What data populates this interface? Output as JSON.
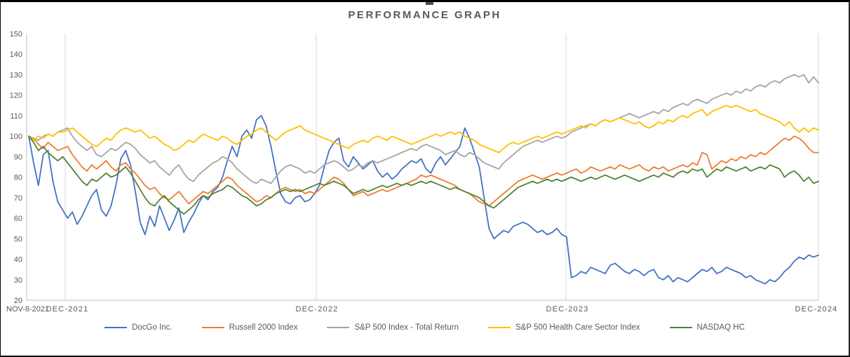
{
  "chart_data": {
    "type": "line",
    "title": "PERFORMANCE GRAPH",
    "legend_position": "bottom",
    "gridlines": "vertical-only",
    "baseline_value": 100,
    "x_axis": {
      "labels": [
        "NOV-8-2021",
        "DEC-2021",
        "DEC-2022",
        "DEC-2023",
        "DEC-2024"
      ]
    },
    "y_axis": {
      "min": 20,
      "max": 150,
      "step": 10,
      "ticks": [
        150,
        140,
        130,
        120,
        110,
        100,
        90,
        80,
        70,
        60,
        50,
        40,
        30,
        20
      ]
    },
    "series": [
      {
        "name": "DocGo Inc.",
        "color": "#4472C4",
        "values": [
          100,
          87,
          76,
          91,
          93,
          78,
          68,
          64,
          60,
          63,
          57,
          61,
          66,
          71,
          74,
          64,
          61,
          66,
          76,
          89,
          93,
          86,
          73,
          58,
          52,
          61,
          56,
          66,
          60,
          54,
          59,
          65,
          53,
          58,
          62,
          67,
          71,
          69,
          73,
          75,
          80,
          88,
          95,
          90,
          100,
          103,
          99,
          108,
          110,
          105,
          95,
          83,
          72,
          68,
          67,
          70,
          71,
          68,
          69,
          72,
          76,
          85,
          93,
          97,
          99,
          88,
          85,
          90,
          87,
          84,
          86,
          88,
          83,
          80,
          82,
          79,
          81,
          84,
          86,
          88,
          87,
          89,
          84,
          82,
          87,
          90,
          86,
          89,
          92,
          95,
          104,
          99,
          92,
          85,
          70,
          55,
          50,
          52,
          54,
          53,
          56,
          57,
          58,
          57,
          55,
          53,
          54,
          52,
          53,
          55,
          52,
          51,
          31,
          32,
          34,
          33,
          36,
          35,
          34,
          33,
          37,
          38,
          36,
          34,
          33,
          35,
          34,
          32,
          34,
          35,
          31,
          30,
          32,
          29,
          31,
          30,
          29,
          31,
          33,
          35,
          34,
          36,
          33,
          34,
          36,
          35,
          34,
          33,
          31,
          32,
          30,
          29,
          28,
          30,
          29,
          31,
          34,
          36,
          39,
          41,
          40,
          42,
          41,
          42
        ]
      },
      {
        "name": "Russell 2000 Index",
        "color": "#ED7D31",
        "values": [
          100,
          99,
          96,
          94,
          97,
          95,
          93,
          94,
          95,
          91,
          88,
          85,
          83,
          86,
          84,
          86,
          88,
          85,
          83,
          86,
          87,
          84,
          82,
          79,
          76,
          74,
          75,
          72,
          70,
          69,
          71,
          73,
          70,
          67,
          69,
          71,
          73,
          72,
          74,
          76,
          78,
          80,
          79,
          76,
          74,
          72,
          70,
          68,
          69,
          71,
          70,
          72,
          74,
          75,
          74,
          73,
          74,
          72,
          73,
          72,
          74,
          76,
          78,
          80,
          79,
          77,
          74,
          71,
          72,
          73,
          71,
          72,
          73,
          74,
          73,
          74,
          75,
          76,
          77,
          78,
          79,
          81,
          80,
          81,
          80,
          79,
          78,
          77,
          76,
          74,
          73,
          72,
          70,
          68,
          67,
          66,
          68,
          70,
          72,
          74,
          76,
          78,
          79,
          80,
          81,
          80,
          79,
          80,
          81,
          82,
          81,
          82,
          83,
          84,
          82,
          83,
          85,
          84,
          83,
          84,
          85,
          84,
          86,
          85,
          84,
          85,
          86,
          84,
          83,
          85,
          84,
          85,
          83,
          84,
          85,
          86,
          85,
          87,
          86,
          92,
          91,
          84,
          86,
          88,
          87,
          89,
          88,
          90,
          89,
          91,
          90,
          92,
          91,
          93,
          95,
          97,
          99,
          98,
          100,
          99,
          97,
          94,
          92,
          92
        ]
      },
      {
        "name": "S&P 500 Index - Total Return",
        "color": "#A5A5A5",
        "values": [
          100,
          99,
          98,
          100,
          101,
          100,
          102,
          103,
          104,
          100,
          97,
          95,
          93,
          95,
          91,
          90,
          92,
          94,
          93,
          95,
          97,
          96,
          94,
          91,
          89,
          87,
          88,
          85,
          83,
          81,
          84,
          86,
          82,
          79,
          78,
          81,
          83,
          85,
          87,
          88,
          90,
          89,
          87,
          84,
          82,
          80,
          78,
          77,
          79,
          78,
          77,
          80,
          83,
          85,
          86,
          85,
          84,
          82,
          83,
          82,
          84,
          86,
          87,
          88,
          87,
          85,
          83,
          84,
          86,
          85,
          87,
          88,
          87,
          88,
          89,
          90,
          91,
          92,
          93,
          94,
          93,
          95,
          96,
          95,
          94,
          93,
          91,
          92,
          93,
          91,
          90,
          92,
          91,
          89,
          87,
          86,
          85,
          84,
          87,
          89,
          91,
          93,
          95,
          96,
          97,
          98,
          97,
          98,
          99,
          100,
          99,
          100,
          102,
          103,
          104,
          105,
          106,
          105,
          107,
          108,
          107,
          108,
          109,
          110,
          111,
          110,
          109,
          110,
          111,
          112,
          111,
          113,
          112,
          114,
          115,
          116,
          115,
          117,
          118,
          117,
          116,
          118,
          119,
          120,
          121,
          120,
          122,
          121,
          123,
          122,
          124,
          125,
          124,
          126,
          127,
          126,
          128,
          129,
          130,
          129,
          130,
          126,
          129,
          126
        ]
      },
      {
        "name": "S&P 500 Health Care Sector Index",
        "color": "#FFC000",
        "values": [
          100,
          98,
          100,
          99,
          101,
          100,
          102,
          102,
          103,
          104,
          102,
          100,
          98,
          96,
          95,
          97,
          99,
          98,
          101,
          103,
          104,
          103,
          102,
          103,
          101,
          99,
          100,
          98,
          96,
          95,
          93,
          94,
          96,
          98,
          97,
          99,
          101,
          100,
          99,
          98,
          100,
          99,
          97,
          96,
          98,
          100,
          101,
          103,
          104,
          102,
          100,
          98,
          100,
          102,
          103,
          104,
          105,
          103,
          102,
          101,
          100,
          99,
          98,
          97,
          96,
          95,
          94,
          96,
          97,
          98,
          97,
          99,
          100,
          99,
          98,
          100,
          99,
          98,
          97,
          96,
          97,
          98,
          99,
          100,
          101,
          100,
          101,
          102,
          101,
          102,
          100,
          99,
          98,
          96,
          95,
          94,
          93,
          92,
          94,
          96,
          97,
          96,
          97,
          98,
          99,
          100,
          99,
          100,
          101,
          102,
          101,
          102,
          103,
          104,
          105,
          104,
          106,
          105,
          107,
          108,
          107,
          108,
          109,
          108,
          107,
          106,
          107,
          105,
          104,
          105,
          107,
          106,
          108,
          107,
          109,
          110,
          109,
          111,
          112,
          113,
          110,
          112,
          113,
          114,
          115,
          114,
          115,
          114,
          113,
          112,
          113,
          111,
          110,
          109,
          108,
          107,
          105,
          107,
          104,
          102,
          104,
          102,
          104,
          103
        ]
      },
      {
        "name": "NASDAQ HC",
        "color": "#548235",
        "values": [
          100,
          97,
          93,
          95,
          92,
          90,
          88,
          90,
          87,
          84,
          81,
          78,
          76,
          79,
          78,
          80,
          82,
          80,
          81,
          83,
          85,
          82,
          78,
          74,
          70,
          67,
          66,
          69,
          71,
          68,
          66,
          64,
          62,
          64,
          66,
          69,
          71,
          70,
          72,
          73,
          74,
          76,
          75,
          73,
          71,
          70,
          68,
          66,
          67,
          69,
          70,
          72,
          73,
          74,
          73,
          74,
          73,
          74,
          75,
          76,
          77,
          76,
          77,
          78,
          77,
          76,
          74,
          72,
          73,
          74,
          73,
          74,
          75,
          76,
          75,
          76,
          77,
          76,
          77,
          76,
          77,
          78,
          77,
          78,
          77,
          76,
          75,
          74,
          75,
          74,
          73,
          72,
          71,
          70,
          68,
          66,
          65,
          67,
          69,
          71,
          73,
          75,
          76,
          77,
          78,
          77,
          78,
          79,
          78,
          79,
          78,
          79,
          80,
          79,
          78,
          79,
          80,
          79,
          80,
          81,
          80,
          79,
          80,
          81,
          80,
          79,
          78,
          79,
          80,
          81,
          80,
          82,
          81,
          80,
          82,
          83,
          82,
          84,
          83,
          84,
          80,
          82,
          84,
          83,
          85,
          84,
          83,
          84,
          85,
          83,
          84,
          85,
          84,
          86,
          85,
          84,
          80,
          82,
          83,
          81,
          78,
          80,
          77,
          78
        ]
      }
    ]
  }
}
